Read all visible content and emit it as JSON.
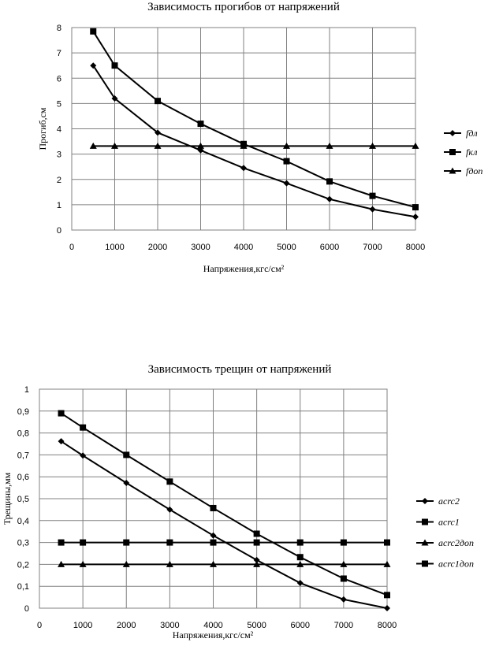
{
  "chart_data": [
    {
      "type": "line",
      "title": "Зависимость прогибов от напряжений",
      "xlabel": "Напряжения,кгс/см²",
      "ylabel": "Прогиб,см",
      "xlim": [
        0,
        8000
      ],
      "ylim": [
        0,
        8
      ],
      "xticks": [
        "0",
        "1000",
        "2000",
        "3000",
        "4000",
        "5000",
        "6000",
        "7000",
        "8000"
      ],
      "yticks": [
        "0",
        "1",
        "2",
        "3",
        "4",
        "5",
        "6",
        "7",
        "8"
      ],
      "grid": true,
      "legend_position": "right",
      "x": [
        500,
        1000,
        2000,
        3000,
        4000,
        5000,
        6000,
        7000,
        8000
      ],
      "series": [
        {
          "name": "fдл",
          "marker": "diamond",
          "values": [
            6.5,
            5.2,
            3.85,
            3.15,
            2.45,
            1.85,
            1.22,
            0.82,
            0.52
          ]
        },
        {
          "name": "fкл",
          "marker": "square",
          "values": [
            7.85,
            6.5,
            5.1,
            4.2,
            3.4,
            2.72,
            1.92,
            1.35,
            0.9
          ]
        },
        {
          "name": "fдоп",
          "marker": "triangle",
          "values": [
            3.32,
            3.32,
            3.32,
            3.32,
            3.32,
            3.32,
            3.32,
            3.32,
            3.32
          ]
        }
      ]
    },
    {
      "type": "line",
      "title": "Зависимость трещин от напряжений",
      "xlabel": "Напряжения,кгс/см²",
      "ylabel": "Трещины,мм",
      "xlim": [
        0,
        8000
      ],
      "ylim": [
        0,
        1
      ],
      "xticks": [
        "0",
        "1000",
        "2000",
        "3000",
        "4000",
        "5000",
        "6000",
        "7000",
        "8000"
      ],
      "yticks": [
        "0",
        "0,1",
        "0,2",
        "0,3",
        "0,4",
        "0,5",
        "0,6",
        "0,7",
        "0,8",
        "0,9",
        "1"
      ],
      "grid": true,
      "legend_position": "right",
      "x": [
        500,
        1000,
        2000,
        3000,
        4000,
        5000,
        6000,
        7000,
        8000
      ],
      "series": [
        {
          "name": "acrc2",
          "marker": "diamond",
          "values": [
            0.762,
            0.697,
            0.572,
            0.45,
            0.332,
            0.22,
            0.115,
            0.04,
            0.0
          ]
        },
        {
          "name": "acrc1",
          "marker": "square",
          "values": [
            0.89,
            0.825,
            0.7,
            0.578,
            0.457,
            0.34,
            0.233,
            0.135,
            0.06
          ]
        },
        {
          "name": "acrc2доп",
          "marker": "triangle",
          "values": [
            0.2,
            0.2,
            0.2,
            0.2,
            0.2,
            0.2,
            0.2,
            0.2,
            0.2
          ]
        },
        {
          "name": "acrc1доп",
          "marker": "square",
          "values": [
            0.3,
            0.3,
            0.3,
            0.3,
            0.3,
            0.3,
            0.3,
            0.3,
            0.3
          ]
        }
      ]
    }
  ]
}
